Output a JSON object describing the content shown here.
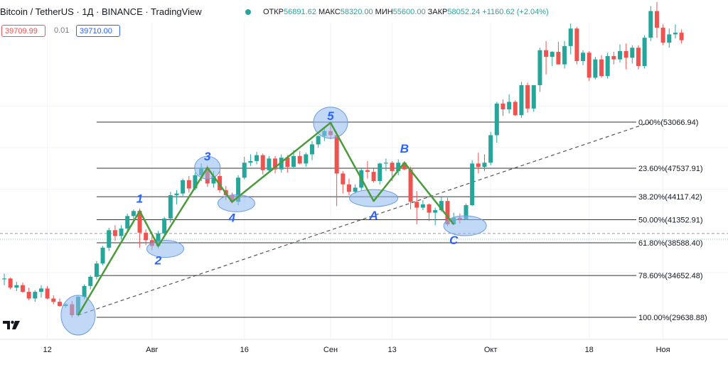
{
  "header": {
    "title": "Bitcoin / TetherUS · 1Д · BINANCE · TradingView",
    "ohlc": [
      {
        "label": "ОТКР",
        "value": "56891.62"
      },
      {
        "label": "МАКС",
        "value": "58320.00"
      },
      {
        "label": "МИН",
        "value": "55600.00"
      },
      {
        "label": "ЗАКР",
        "value": "58052.24"
      }
    ],
    "change": "+1160.62 (+2.04%)"
  },
  "trade": {
    "sell": "39709.99",
    "spread": "0.01",
    "buy": "39710.00"
  },
  "chart_data": {
    "type": "candlestick",
    "symbol": "Bitcoin / TetherUS",
    "interval": "1Д",
    "exchange": "BINANCE",
    "x_labels": [
      "12",
      "Авг",
      "16",
      "Сен",
      "13",
      "Окт",
      "18",
      "Ноя"
    ],
    "ylim": [
      27000,
      65000
    ],
    "candles_ohlc": [
      [
        34200,
        34900,
        33500,
        34300
      ],
      [
        34300,
        34400,
        33000,
        33200
      ],
      [
        33200,
        33900,
        32800,
        33500
      ],
      [
        33500,
        33800,
        32600,
        32700
      ],
      [
        32700,
        33200,
        31700,
        31900
      ],
      [
        31900,
        32900,
        31500,
        32700
      ],
      [
        32700,
        33500,
        32000,
        33100
      ],
      [
        33100,
        33400,
        31800,
        31900
      ],
      [
        31900,
        32300,
        31200,
        31500
      ],
      [
        31500,
        31900,
        30900,
        31000
      ],
      [
        31000,
        31300,
        30800,
        31200
      ],
      [
        31200,
        31600,
        29600,
        29900
      ],
      [
        29900,
        32300,
        29700,
        32100
      ],
      [
        32100,
        33600,
        31800,
        33400
      ],
      [
        33400,
        34700,
        33000,
        34500
      ],
      [
        34500,
        36400,
        34200,
        36100
      ],
      [
        36100,
        38200,
        35900,
        38000
      ],
      [
        38000,
        40400,
        37600,
        40100
      ],
      [
        40100,
        40700,
        38800,
        39400
      ],
      [
        39400,
        40700,
        39000,
        40300
      ],
      [
        40300,
        42100,
        39800,
        41800
      ],
      [
        41800,
        42600,
        41300,
        42400
      ],
      [
        42400,
        42700,
        38000,
        39800
      ],
      [
        39800,
        40200,
        38300,
        38900
      ],
      [
        38900,
        39900,
        37700,
        38200
      ],
      [
        38200,
        40000,
        37900,
        39700
      ],
      [
        39700,
        41700,
        39400,
        41500
      ],
      [
        41500,
        44700,
        41000,
        44300
      ],
      [
        44300,
        44900,
        43200,
        44500
      ],
      [
        44500,
        46300,
        44200,
        46100
      ],
      [
        46100,
        46600,
        44600,
        45100
      ],
      [
        45100,
        47000,
        44900,
        46700
      ],
      [
        46700,
        48100,
        46000,
        47600
      ],
      [
        47600,
        47900,
        45300,
        45700
      ],
      [
        45700,
        47200,
        45200,
        46600
      ],
      [
        46600,
        47200,
        44600,
        44900
      ],
      [
        44900,
        45400,
        43700,
        44300
      ],
      [
        44300,
        44600,
        43300,
        43500
      ],
      [
        43500,
        46700,
        43100,
        46400
      ],
      [
        46400,
        48900,
        46200,
        48200
      ],
      [
        48200,
        49200,
        47800,
        48400
      ],
      [
        48400,
        49500,
        48000,
        49100
      ],
      [
        49100,
        49300,
        46800,
        47300
      ],
      [
        47300,
        49000,
        47100,
        48700
      ],
      [
        48700,
        49000,
        46900,
        47400
      ],
      [
        47400,
        49200,
        47000,
        48800
      ],
      [
        48800,
        49100,
        47000,
        47700
      ],
      [
        47700,
        49700,
        47500,
        49000
      ],
      [
        49000,
        49600,
        48000,
        48100
      ],
      [
        48100,
        49400,
        47700,
        49200
      ],
      [
        49200,
        50800,
        48500,
        50400
      ],
      [
        50400,
        51500,
        50000,
        51400
      ],
      [
        51400,
        52500,
        50800,
        52000
      ],
      [
        52000,
        53100,
        51000,
        51500
      ],
      [
        51500,
        51900,
        43000,
        46900
      ],
      [
        46900,
        47200,
        44500,
        45600
      ],
      [
        45600,
        46300,
        44300,
        44700
      ],
      [
        44700,
        45600,
        44500,
        45200
      ],
      [
        45200,
        47500,
        44900,
        47300
      ],
      [
        47300,
        48400,
        46300,
        47100
      ],
      [
        47100,
        47500,
        45800,
        46000
      ],
      [
        46000,
        48200,
        45600,
        48100
      ],
      [
        48100,
        48700,
        47200,
        48200
      ],
      [
        48200,
        48400,
        46000,
        47200
      ],
      [
        47200,
        48600,
        46700,
        48200
      ],
      [
        48200,
        48400,
        47300,
        47400
      ],
      [
        47400,
        47700,
        42600,
        43500
      ],
      [
        43500,
        44800,
        40800,
        42800
      ],
      [
        42800,
        43700,
        42500,
        43200
      ],
      [
        43200,
        43300,
        41200,
        42200
      ],
      [
        42200,
        42800,
        40700,
        42500
      ],
      [
        42500,
        44100,
        42300,
        43600
      ],
      [
        43600,
        44000,
        40600,
        40800
      ],
      [
        40800,
        42200,
        40700,
        41600
      ],
      [
        41600,
        42100,
        40900,
        41400
      ],
      [
        41400,
        43300,
        41300,
        43100
      ],
      [
        43100,
        48500,
        43000,
        48100
      ],
      [
        48100,
        49400,
        46900,
        47700
      ],
      [
        47700,
        49200,
        47200,
        48200
      ],
      [
        48200,
        51900,
        47900,
        51500
      ],
      [
        51500,
        55500,
        50600,
        55300
      ],
      [
        55300,
        55800,
        53800,
        54600
      ],
      [
        54600,
        56400,
        54100,
        55500
      ],
      [
        55500,
        55700,
        53800,
        53900
      ],
      [
        53900,
        57900,
        53600,
        57500
      ],
      [
        57500,
        57800,
        54200,
        54700
      ],
      [
        54700,
        56300,
        54300,
        57500
      ],
      [
        57500,
        62000,
        56700,
        61700
      ],
      [
        61700,
        62800,
        58800,
        60900
      ],
      [
        60900,
        61600,
        59800,
        61500
      ],
      [
        61500,
        62700,
        60000,
        60000
      ],
      [
        60000,
        62800,
        59500,
        62200
      ],
      [
        62200,
        64900,
        61200,
        64300
      ],
      [
        64300,
        64500,
        60000,
        60400
      ],
      [
        60400,
        61700,
        59900,
        61400
      ],
      [
        61400,
        61600,
        58000,
        58400
      ],
      [
        58400,
        60900,
        58200,
        60600
      ],
      [
        60600,
        61100,
        58400,
        58600
      ],
      [
        58600,
        61400,
        58300,
        61000
      ],
      [
        61000,
        61500,
        60000,
        60600
      ],
      [
        60600,
        62400,
        60200,
        61600
      ],
      [
        61600,
        62500,
        59400,
        60800
      ],
      [
        60800,
        62300,
        60100,
        62000
      ],
      [
        62000,
        62300,
        59400,
        59800
      ],
      [
        59800,
        63500,
        59500,
        63200
      ],
      [
        63200,
        67000,
        62800,
        66400
      ],
      [
        66400,
        67500,
        63200,
        64400
      ],
      [
        64400,
        64800,
        62300,
        62600
      ],
      [
        62600,
        64300,
        62000,
        63600
      ],
      [
        63600,
        64800,
        63100,
        63800
      ],
      [
        63800,
        64200,
        62500,
        62900
      ]
    ],
    "fibonacci": [
      {
        "label": "0.00%(53066.94)",
        "price": 53066.94
      },
      {
        "label": "23.60%(47537.91)",
        "price": 47537.91
      },
      {
        "label": "38.20%(44117.42)",
        "price": 44117.42
      },
      {
        "label": "50.00%(41352.91)",
        "price": 41352.91
      },
      {
        "label": "61.80%(38588.40)",
        "price": 38588.4
      },
      {
        "label": "78.60%(34652.48)",
        "price": 34652.48
      },
      {
        "label": "100.00%(29638.88)",
        "price": 29638.88
      }
    ],
    "elliott_wave": [
      {
        "label": "",
        "candle": 12,
        "price": 29900
      },
      {
        "label": "1",
        "candle": 22,
        "price": 42400
      },
      {
        "label": "2",
        "candle": 25,
        "price": 38200
      },
      {
        "label": "3",
        "candle": 33,
        "price": 47600
      },
      {
        "label": "4",
        "candle": 37,
        "price": 43500
      },
      {
        "label": "5",
        "candle": 53,
        "price": 53000
      },
      {
        "label": "A",
        "candle": 60,
        "price": 43600
      },
      {
        "label": "B",
        "candle": 65,
        "price": 48200
      },
      {
        "label": "C",
        "candle": 73,
        "price": 40800
      }
    ],
    "trendline": {
      "from": {
        "candle": 12,
        "price": 29900
      },
      "to": {
        "candle": 105,
        "price": 53066.94
      }
    },
    "current_price_guide": 39710
  },
  "colors": {
    "up": "#26a69a",
    "down": "#ef5350",
    "wave": "#4a9b3a",
    "wave_label": "#2962ff",
    "highlight": "#90b8f0"
  }
}
